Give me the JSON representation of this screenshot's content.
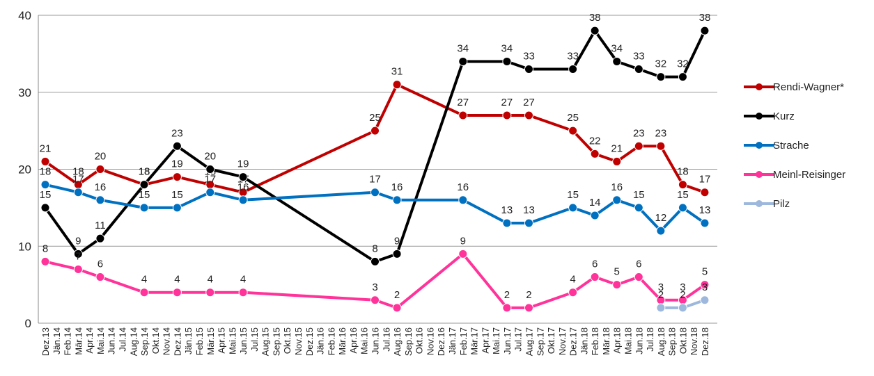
{
  "chart_data": {
    "type": "line",
    "categories": [
      "Dez.13",
      "Jän.14",
      "Feb.14",
      "Mär.14",
      "Apr.14",
      "Mai.14",
      "Jun.14",
      "Jul.14",
      "Aug.14",
      "Sep.14",
      "Okt.14",
      "Nov.14",
      "Dez.14",
      "Jän.15",
      "Feb.15",
      "Mär.15",
      "Apr.15",
      "Mai.15",
      "Jun.15",
      "Jul.15",
      "Aug.15",
      "Sep.15",
      "Okt.15",
      "Nov.15",
      "Dez.15",
      "Jän.16",
      "Feb.16",
      "Mär.16",
      "Apr.16",
      "Mai.16",
      "Jun.16",
      "Jul.16",
      "Aug.16",
      "Sep.16",
      "Okt.16",
      "Nov.16",
      "Dez.16",
      "Jän.17",
      "Feb.17",
      "Mär.17",
      "Apr.17",
      "Mai.17",
      "Jun.17",
      "Jul.17",
      "Aug.17",
      "Sep.17",
      "Okt.17",
      "Nov.17",
      "Dez.17",
      "Jän.18",
      "Feb.18",
      "Mär.18",
      "Apr.18",
      "Mai.18",
      "Jun.18",
      "Jul.18",
      "Aug.18",
      "Sep.18",
      "Okt.18",
      "Nov.18",
      "Dez.18"
    ],
    "ylim": [
      0,
      40
    ],
    "yticks": [
      0,
      10,
      20,
      30,
      40
    ],
    "grid": true,
    "legend": "right",
    "series": [
      {
        "name": "Rendi-Wagner*",
        "color": "#c00000",
        "x": [
          "Dez.13",
          "Mär.14",
          "Mai.14",
          "Sep.14",
          "Dez.14",
          "Mär.15",
          "Jun.15",
          "Jun.16",
          "Aug.16",
          "Feb.17",
          "Jun.17",
          "Aug.17",
          "Dez.17",
          "Feb.18",
          "Apr.18",
          "Jun.18",
          "Aug.18",
          "Okt.18",
          "Dez.18"
        ],
        "values": [
          21,
          18,
          20,
          18,
          19,
          18,
          17,
          25,
          31,
          27,
          27,
          27,
          25,
          22,
          21,
          23,
          23,
          18,
          17
        ]
      },
      {
        "name": "Kurz",
        "color": "#000000",
        "x": [
          "Dez.13",
          "Mär.14",
          "Mai.14",
          "Sep.14",
          "Dez.14",
          "Mär.15",
          "Jun.15",
          "Jun.16",
          "Aug.16",
          "Feb.17",
          "Jun.17",
          "Aug.17",
          "Dez.17",
          "Feb.18",
          "Apr.18",
          "Jun.18",
          "Aug.18",
          "Okt.18",
          "Dez.18"
        ],
        "values": [
          15,
          9,
          11,
          18,
          23,
          20,
          19,
          8,
          9,
          34,
          34,
          33,
          33,
          38,
          34,
          33,
          32,
          32,
          38
        ]
      },
      {
        "name": "Strache",
        "color": "#0070c0",
        "x": [
          "Dez.13",
          "Mär.14",
          "Mai.14",
          "Sep.14",
          "Dez.14",
          "Mär.15",
          "Jun.15",
          "Jun.16",
          "Aug.16",
          "Feb.17",
          "Jun.17",
          "Aug.17",
          "Dez.17",
          "Feb.18",
          "Apr.18",
          "Jun.18",
          "Aug.18",
          "Okt.18",
          "Dez.18"
        ],
        "values": [
          18,
          17,
          16,
          15,
          15,
          17,
          16,
          17,
          16,
          16,
          13,
          13,
          15,
          14,
          16,
          15,
          12,
          15,
          13
        ]
      },
      {
        "name": "Meinl-Reisinger",
        "color": "#ff3399",
        "x": [
          "Dez.13",
          "Mär.14",
          "Mai.14",
          "Sep.14",
          "Dez.14",
          "Mär.15",
          "Jun.15",
          "Jun.16",
          "Aug.16",
          "Feb.17",
          "Jun.17",
          "Aug.17",
          "Dez.17",
          "Feb.18",
          "Apr.18",
          "Jun.18",
          "Aug.18",
          "Okt.18",
          "Dez.18"
        ],
        "values": [
          8,
          7,
          6,
          4,
          4,
          4,
          4,
          3,
          2,
          9,
          2,
          2,
          4,
          6,
          5,
          6,
          3,
          3,
          5
        ]
      },
      {
        "name": "Pilz",
        "color": "#9db8dc",
        "x": [
          "Aug.18",
          "Okt.18",
          "Dez.18"
        ],
        "values": [
          2,
          2,
          3
        ]
      }
    ]
  }
}
